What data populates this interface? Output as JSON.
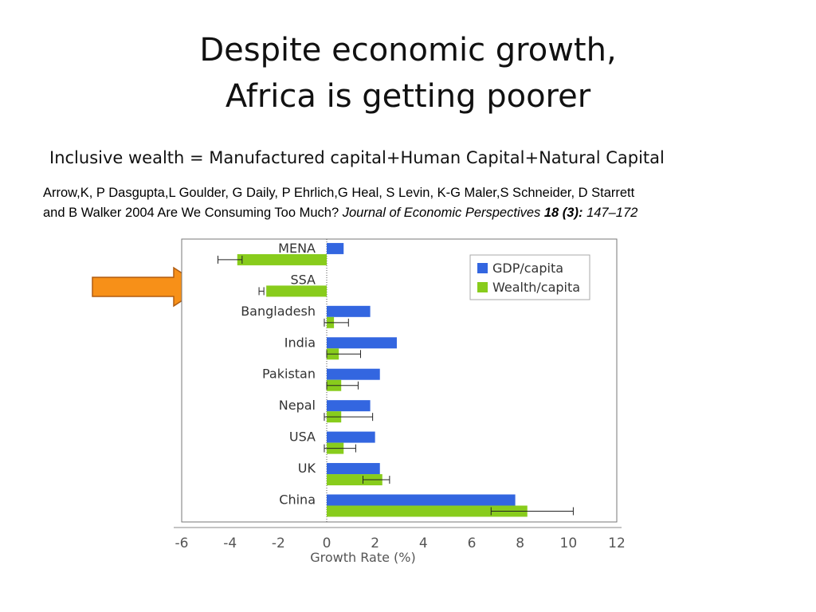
{
  "slide": {
    "title_line1": "Despite economic growth,",
    "title_line2": "Africa is getting poorer",
    "subtitle": "Inclusive wealth = Manufactured capital+Human Capital+Natural Capital",
    "citation": {
      "authors_line1": "Arrow,K,  P Dasgupta,L Goulder, G Daily, P Ehrlich,G Heal, S Levin, K-G Maler,S Schneider, D Starrett",
      "authors_line2": "and B Walker 2004 Are We Consuming Too Much?",
      "journal": "Journal of Economic Perspectives",
      "volume_issue": "18  (3):",
      "pages": "147–172"
    }
  },
  "colors": {
    "gdp": "#3366e0",
    "wealth": "#88cc1c",
    "arrow": "#f79018",
    "arrow_border": "#b05c10"
  },
  "chart_data": {
    "type": "bar",
    "orientation": "horizontal",
    "categories": [
      "MENA",
      "SSA",
      "Bangladesh",
      "India",
      "Pakistan",
      "Nepal",
      "USA",
      "UK",
      "China"
    ],
    "series": [
      {
        "name": "GDP/capita",
        "values": [
          0.7,
          null,
          1.8,
          2.9,
          2.2,
          1.8,
          2.0,
          2.2,
          7.8
        ]
      },
      {
        "name": "Wealth/capita",
        "values": [
          -3.7,
          -2.5,
          0.3,
          0.5,
          0.6,
          0.6,
          0.7,
          2.3,
          8.3
        ],
        "error_low": [
          -4.5,
          -2.8,
          -0.1,
          0.0,
          0.0,
          -0.1,
          -0.1,
          1.5,
          6.8
        ],
        "error_high": [
          -3.5,
          -2.6,
          0.9,
          1.4,
          1.3,
          1.9,
          1.2,
          2.6,
          10.2
        ]
      }
    ],
    "xlabel": "Growth Rate (%)",
    "xlim": [
      -6,
      12
    ],
    "xticks": [
      "-6",
      "-4",
      "-2",
      "0",
      "2",
      "4",
      "6",
      "8",
      "10",
      "12"
    ],
    "legend_position": "top-right",
    "grid": false
  }
}
